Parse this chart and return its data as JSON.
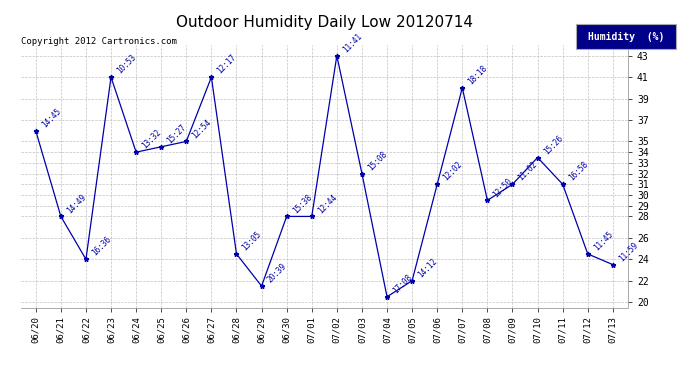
{
  "title": "Outdoor Humidity Daily Low 20120714",
  "copyright": "Copyright 2012 Cartronics.com",
  "legend_label": "Humidity  (%)",
  "x_labels": [
    "06/20",
    "06/21",
    "06/22",
    "06/23",
    "06/24",
    "06/25",
    "06/26",
    "06/27",
    "06/28",
    "06/29",
    "06/30",
    "07/01",
    "07/02",
    "07/03",
    "07/04",
    "07/05",
    "07/06",
    "07/07",
    "07/08",
    "07/09",
    "07/10",
    "07/11",
    "07/12",
    "07/13"
  ],
  "y_values": [
    36,
    28,
    24,
    41,
    34,
    34.5,
    35,
    41,
    24.5,
    21.5,
    28,
    28,
    43,
    32,
    20.5,
    22,
    31,
    40,
    29.5,
    31,
    33.5,
    31,
    24.5,
    23.5
  ],
  "point_labels": [
    "14:45",
    "14:49",
    "16:36",
    "10:53",
    "13:32",
    "15:27",
    "12:54",
    "12:17",
    "13:05",
    "20:39",
    "15:38",
    "12:44",
    "11:41",
    "15:08",
    "17:08",
    "14:12",
    "12:02",
    "18:18",
    "12:50",
    "11:02",
    "15:26",
    "16:58",
    "11:45",
    "11:59"
  ],
  "ylim": [
    19.5,
    44
  ],
  "yticks": [
    20,
    22,
    24,
    26,
    28,
    29,
    30,
    31,
    32,
    33,
    34,
    35,
    37,
    39,
    41,
    43
  ],
  "line_color": "#0000AA",
  "bg_color": "#ffffff",
  "grid_color": "#bbbbbb",
  "title_fontsize": 11,
  "label_fontsize": 6.5,
  "legend_bg": "#000088",
  "legend_text_color": "#ffffff"
}
